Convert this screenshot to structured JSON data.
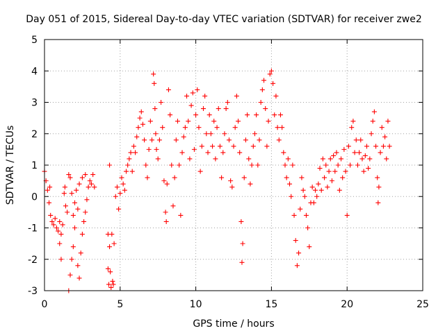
{
  "chart_data": {
    "type": "scatter",
    "title": "Day 051 of 2015, Sidereal Day-to-day VTEC variation (SDTVAR) for receiver zwe2",
    "xlabel": "GPS time / hours",
    "ylabel": "SDTVAR / TECUs",
    "xlim": [
      0,
      25
    ],
    "ylim": [
      -3,
      5
    ],
    "xticks": [
      "0",
      "5",
      "10",
      "15",
      "20",
      "25"
    ],
    "yticks": [
      "-3",
      "-2",
      "-1",
      "0",
      "1",
      "2",
      "3",
      "4",
      "5"
    ],
    "grid": true,
    "marker": "+",
    "color": "#ff0000",
    "series": [
      {
        "name": "SDTVAR",
        "points": [
          [
            0.0,
            0.8
          ],
          [
            0.1,
            0.5
          ],
          [
            0.2,
            0.2
          ],
          [
            0.3,
            -0.2
          ],
          [
            0.35,
            0.3
          ],
          [
            0.4,
            -0.6
          ],
          [
            0.5,
            -0.8
          ],
          [
            0.6,
            -0.9
          ],
          [
            0.7,
            -0.7
          ],
          [
            0.8,
            -1.0
          ],
          [
            0.9,
            -1.1
          ],
          [
            1.0,
            -0.8
          ],
          [
            1.0,
            -1.5
          ],
          [
            1.1,
            -2.0
          ],
          [
            1.1,
            -1.2
          ],
          [
            1.2,
            -0.9
          ],
          [
            1.3,
            0.1
          ],
          [
            1.35,
            0.3
          ],
          [
            1.4,
            -0.3
          ],
          [
            1.5,
            -0.5
          ],
          [
            1.6,
            -3.0
          ],
          [
            1.6,
            0.7
          ],
          [
            1.7,
            -2.5
          ],
          [
            1.7,
            0.6
          ],
          [
            1.8,
            -2.0
          ],
          [
            1.8,
            0.1
          ],
          [
            1.9,
            -1.6
          ],
          [
            1.9,
            -0.6
          ],
          [
            2.0,
            -1.0
          ],
          [
            2.0,
            -0.2
          ],
          [
            2.1,
            0.2
          ],
          [
            2.2,
            -2.2
          ],
          [
            2.2,
            -0.4
          ],
          [
            2.3,
            -2.6
          ],
          [
            2.3,
            0.4
          ],
          [
            2.4,
            -1.8
          ],
          [
            2.5,
            -1.2
          ],
          [
            2.5,
            0.6
          ],
          [
            2.6,
            -0.8
          ],
          [
            2.7,
            -0.5
          ],
          [
            2.7,
            0.7
          ],
          [
            2.8,
            -0.1
          ],
          [
            2.9,
            0.3
          ],
          [
            3.0,
            0.5
          ],
          [
            3.1,
            0.4
          ],
          [
            3.2,
            0.7
          ],
          [
            3.3,
            0.3
          ],
          [
            4.2,
            -1.2
          ],
          [
            4.2,
            -2.3
          ],
          [
            4.25,
            -2.8
          ],
          [
            4.3,
            1.0
          ],
          [
            4.3,
            -1.6
          ],
          [
            4.35,
            -2.4
          ],
          [
            4.4,
            -2.9
          ],
          [
            4.45,
            -1.2
          ],
          [
            4.5,
            -2.7
          ],
          [
            4.55,
            -2.8
          ],
          [
            4.6,
            -1.5
          ],
          [
            4.7,
            0.0
          ],
          [
            4.8,
            0.3
          ],
          [
            4.9,
            -0.4
          ],
          [
            5.0,
            0.1
          ],
          [
            5.1,
            0.6
          ],
          [
            5.2,
            0.4
          ],
          [
            5.3,
            0.2
          ],
          [
            5.4,
            0.8
          ],
          [
            5.5,
            1.0
          ],
          [
            5.6,
            1.2
          ],
          [
            5.7,
            1.4
          ],
          [
            5.8,
            0.8
          ],
          [
            5.9,
            1.6
          ],
          [
            6.0,
            1.4
          ],
          [
            6.1,
            1.9
          ],
          [
            6.2,
            2.2
          ],
          [
            6.3,
            2.5
          ],
          [
            6.4,
            2.7
          ],
          [
            6.5,
            2.3
          ],
          [
            6.6,
            1.8
          ],
          [
            6.7,
            1.0
          ],
          [
            6.8,
            0.6
          ],
          [
            6.9,
            1.5
          ],
          [
            7.0,
            2.4
          ],
          [
            7.1,
            1.8
          ],
          [
            7.2,
            3.9
          ],
          [
            7.25,
            3.6
          ],
          [
            7.3,
            2.8
          ],
          [
            7.35,
            2.0
          ],
          [
            7.4,
            1.5
          ],
          [
            7.5,
            1.2
          ],
          [
            7.6,
            1.8
          ],
          [
            7.7,
            3.0
          ],
          [
            7.8,
            2.2
          ],
          [
            7.9,
            0.5
          ],
          [
            8.0,
            -0.5
          ],
          [
            8.05,
            -0.8
          ],
          [
            8.1,
            0.4
          ],
          [
            8.2,
            3.4
          ],
          [
            8.3,
            2.6
          ],
          [
            8.4,
            1.0
          ],
          [
            8.5,
            -0.3
          ],
          [
            8.6,
            0.6
          ],
          [
            8.7,
            1.8
          ],
          [
            8.8,
            2.4
          ],
          [
            8.9,
            1.0
          ],
          [
            9.0,
            -0.6
          ],
          [
            9.1,
            1.4
          ],
          [
            9.2,
            1.9
          ],
          [
            9.3,
            2.2
          ],
          [
            9.4,
            3.2
          ],
          [
            9.5,
            2.4
          ],
          [
            9.6,
            1.2
          ],
          [
            9.7,
            2.9
          ],
          [
            9.8,
            3.3
          ],
          [
            9.9,
            1.5
          ],
          [
            10.0,
            2.6
          ],
          [
            10.1,
            3.4
          ],
          [
            10.2,
            2.2
          ],
          [
            10.3,
            0.8
          ],
          [
            10.4,
            1.6
          ],
          [
            10.5,
            2.8
          ],
          [
            10.6,
            3.2
          ],
          [
            10.7,
            2.0
          ],
          [
            10.8,
            1.4
          ],
          [
            10.9,
            2.6
          ],
          [
            11.0,
            2.0
          ],
          [
            11.1,
            1.6
          ],
          [
            11.2,
            2.4
          ],
          [
            11.3,
            1.2
          ],
          [
            11.4,
            2.2
          ],
          [
            11.5,
            2.8
          ],
          [
            11.6,
            1.6
          ],
          [
            11.7,
            0.6
          ],
          [
            11.8,
            1.4
          ],
          [
            11.9,
            2.0
          ],
          [
            12.0,
            2.8
          ],
          [
            12.1,
            3.0
          ],
          [
            12.2,
            1.8
          ],
          [
            12.3,
            0.5
          ],
          [
            12.4,
            0.3
          ],
          [
            12.5,
            1.6
          ],
          [
            12.6,
            2.2
          ],
          [
            12.7,
            3.2
          ],
          [
            12.8,
            2.4
          ],
          [
            12.9,
            1.4
          ],
          [
            13.0,
            -0.8
          ],
          [
            13.05,
            -2.1
          ],
          [
            13.1,
            -1.5
          ],
          [
            13.2,
            0.6
          ],
          [
            13.3,
            1.8
          ],
          [
            13.4,
            2.6
          ],
          [
            13.5,
            1.2
          ],
          [
            13.6,
            0.4
          ],
          [
            13.7,
            1.0
          ],
          [
            13.8,
            1.6
          ],
          [
            13.9,
            2.0
          ],
          [
            14.0,
            2.6
          ],
          [
            14.1,
            1.0
          ],
          [
            14.2,
            1.8
          ],
          [
            14.3,
            3.0
          ],
          [
            14.4,
            3.4
          ],
          [
            14.5,
            3.7
          ],
          [
            14.6,
            2.8
          ],
          [
            14.7,
            1.6
          ],
          [
            14.8,
            2.4
          ],
          [
            14.9,
            3.9
          ],
          [
            15.0,
            4.0
          ],
          [
            15.1,
            3.6
          ],
          [
            15.2,
            2.6
          ],
          [
            15.3,
            3.2
          ],
          [
            15.4,
            2.2
          ],
          [
            15.5,
            1.8
          ],
          [
            15.6,
            2.6
          ],
          [
            15.7,
            2.2
          ],
          [
            15.8,
            1.4
          ],
          [
            15.9,
            1.0
          ],
          [
            16.0,
            0.6
          ],
          [
            16.1,
            1.2
          ],
          [
            16.2,
            0.4
          ],
          [
            16.3,
            0.0
          ],
          [
            16.4,
            1.0
          ],
          [
            16.5,
            -0.6
          ],
          [
            16.6,
            -1.4
          ],
          [
            16.7,
            -2.2
          ],
          [
            16.8,
            -1.8
          ],
          [
            16.9,
            -0.4
          ],
          [
            17.0,
            0.6
          ],
          [
            17.1,
            0.2
          ],
          [
            17.2,
            0.0
          ],
          [
            17.3,
            -0.6
          ],
          [
            17.4,
            -1.0
          ],
          [
            17.5,
            -1.6
          ],
          [
            17.6,
            -0.2
          ],
          [
            17.7,
            0.3
          ],
          [
            17.8,
            -0.2
          ],
          [
            17.9,
            0.2
          ],
          [
            18.0,
            0.0
          ],
          [
            18.1,
            0.4
          ],
          [
            18.2,
            0.9
          ],
          [
            18.3,
            0.2
          ],
          [
            18.4,
            1.2
          ],
          [
            18.5,
            0.6
          ],
          [
            18.6,
            1.0
          ],
          [
            18.7,
            0.3
          ],
          [
            18.8,
            0.8
          ],
          [
            18.9,
            1.2
          ],
          [
            19.0,
            0.5
          ],
          [
            19.1,
            1.3
          ],
          [
            19.2,
            0.8
          ],
          [
            19.3,
            1.4
          ],
          [
            19.4,
            1.0
          ],
          [
            19.5,
            0.2
          ],
          [
            19.6,
            1.2
          ],
          [
            19.7,
            0.6
          ],
          [
            19.8,
            1.5
          ],
          [
            19.9,
            0.8
          ],
          [
            20.0,
            -0.6
          ],
          [
            20.1,
            1.6
          ],
          [
            20.2,
            1.0
          ],
          [
            20.3,
            2.2
          ],
          [
            20.4,
            2.4
          ],
          [
            20.5,
            1.4
          ],
          [
            20.6,
            1.8
          ],
          [
            20.7,
            1.0
          ],
          [
            20.8,
            1.4
          ],
          [
            20.9,
            1.8
          ],
          [
            21.0,
            1.2
          ],
          [
            21.1,
            0.8
          ],
          [
            21.2,
            1.3
          ],
          [
            21.3,
            1.6
          ],
          [
            21.4,
            0.9
          ],
          [
            21.5,
            1.2
          ],
          [
            21.6,
            2.0
          ],
          [
            21.7,
            2.4
          ],
          [
            21.8,
            2.7
          ],
          [
            21.9,
            1.6
          ],
          [
            22.0,
            0.6
          ],
          [
            22.05,
            -0.2
          ],
          [
            22.1,
            0.3
          ],
          [
            22.2,
            1.4
          ],
          [
            22.3,
            2.2
          ],
          [
            22.4,
            1.6
          ],
          [
            22.5,
            1.9
          ],
          [
            22.6,
            1.2
          ],
          [
            22.7,
            2.4
          ],
          [
            22.8,
            1.6
          ]
        ]
      }
    ]
  }
}
